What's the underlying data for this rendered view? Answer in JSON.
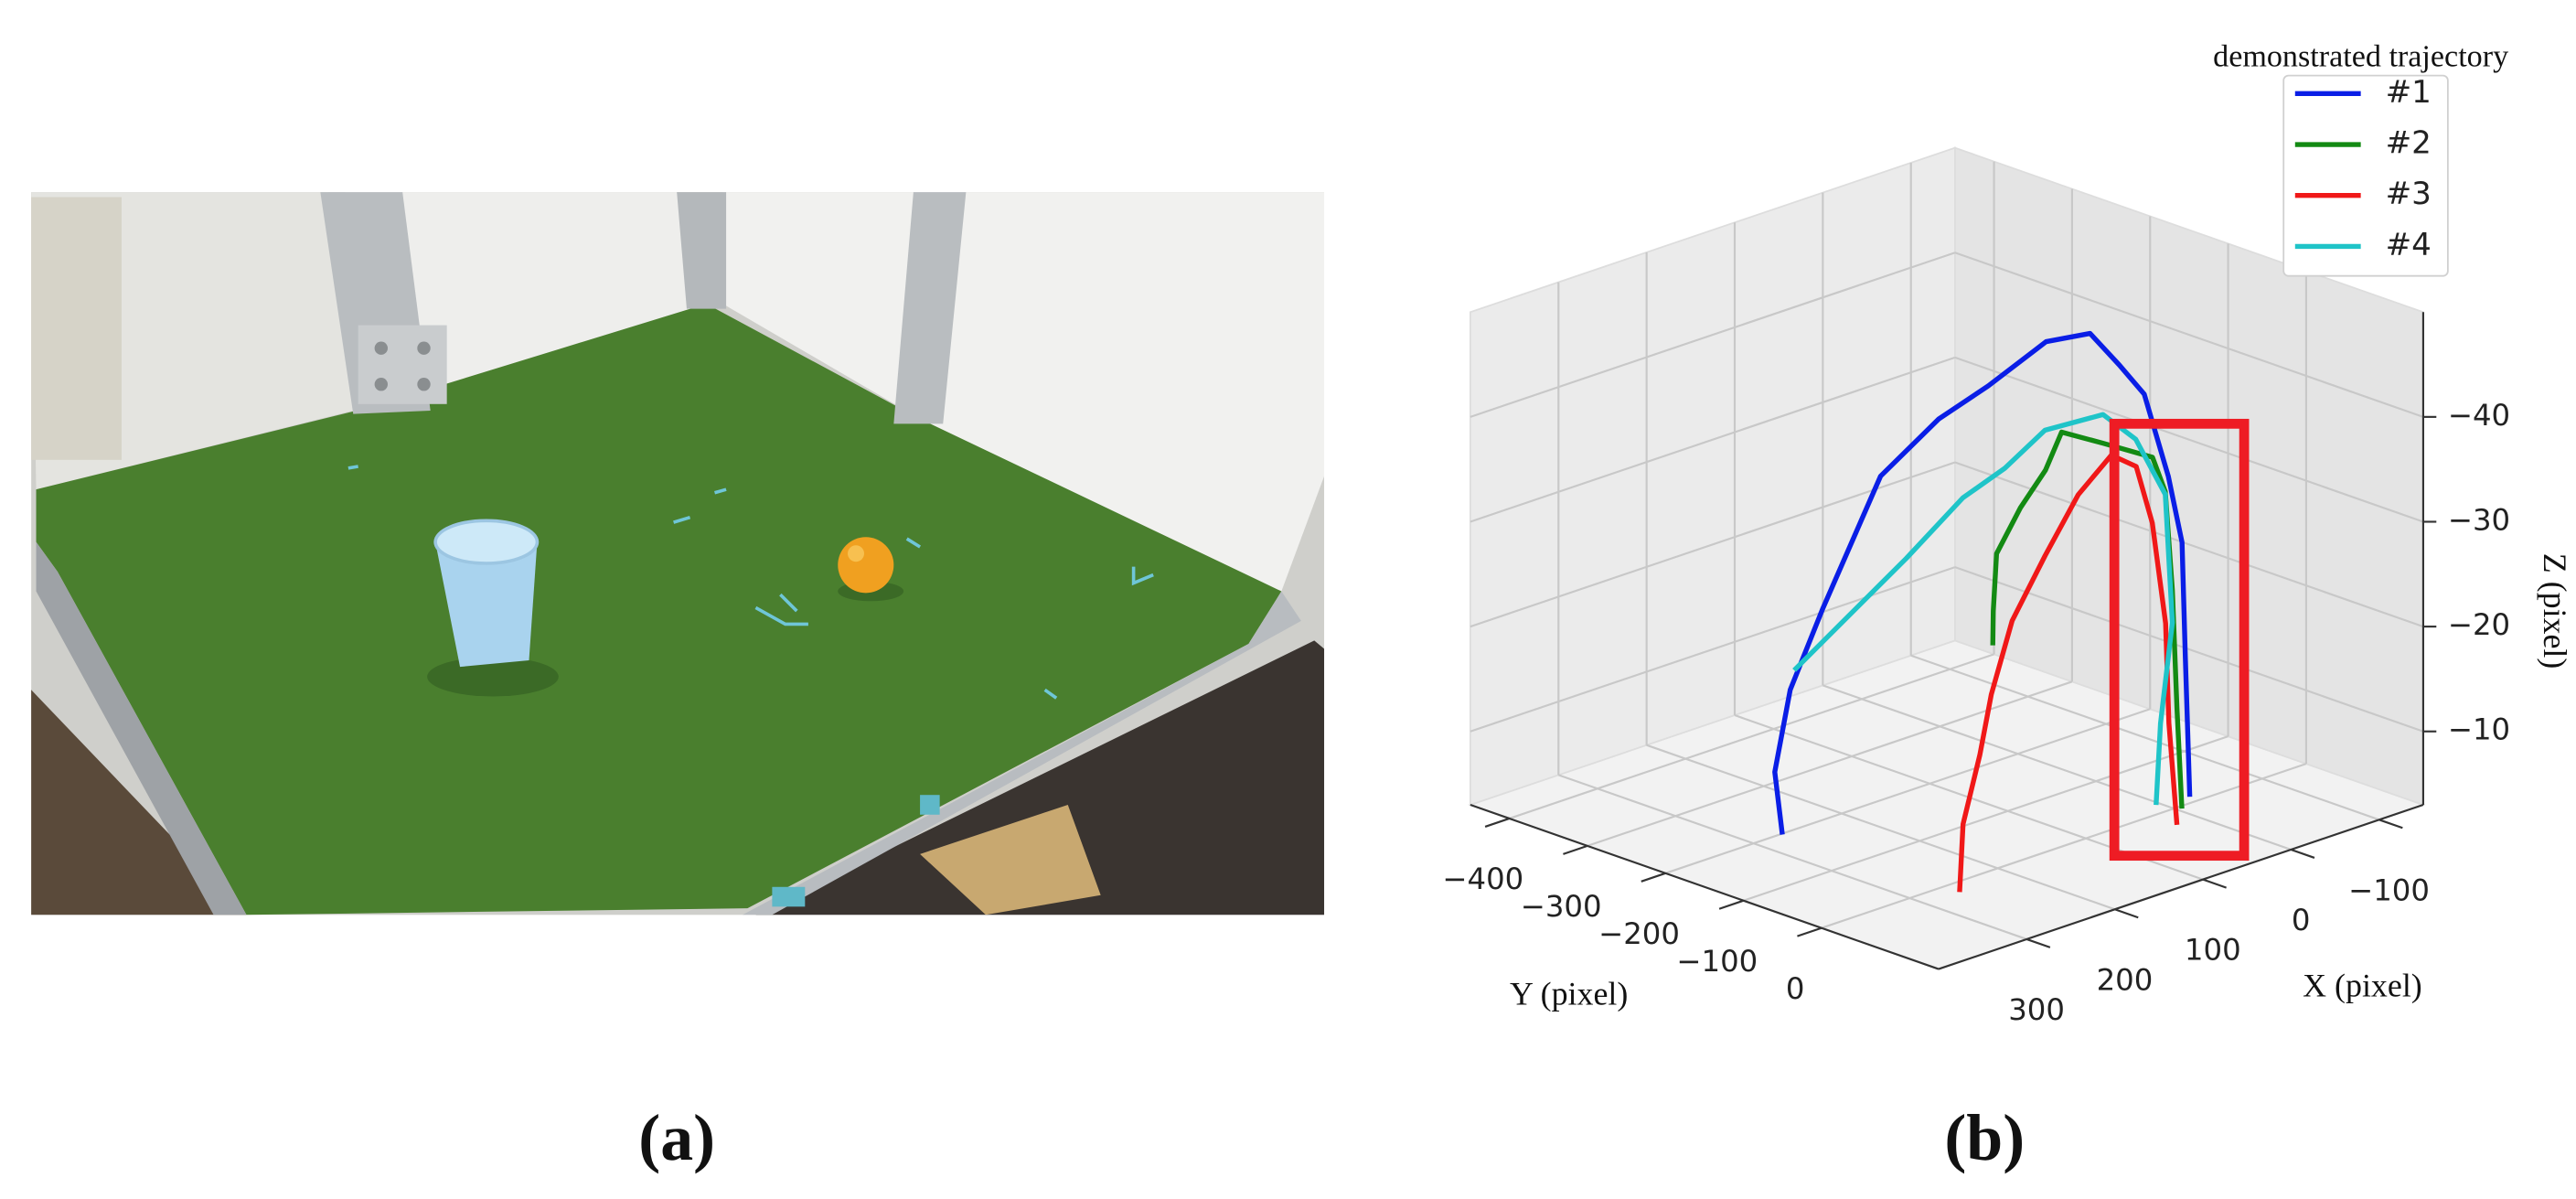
{
  "captions": [
    "(a)",
    "(b)"
  ],
  "chart_data": {
    "type": "line3d",
    "legend_title": "demonstrated trajectory",
    "xlabel": "X (pixel)",
    "ylabel": "Y (pixel)",
    "zlabel": "Z (pixel)",
    "xlim": [
      -150,
      400
    ],
    "ylim": [
      -450,
      150
    ],
    "zlim": [
      -3,
      -50
    ],
    "xticks": [
      {
        "value": -100,
        "label": "−100"
      },
      0,
      100,
      200,
      300
    ],
    "yticks": [
      {
        "value": -400,
        "label": "−400"
      },
      {
        "value": -300,
        "label": "−300"
      },
      {
        "value": -200,
        "label": "−200"
      },
      {
        "value": -100,
        "label": "−100"
      },
      0
    ],
    "zticks": [
      {
        "value": -40,
        "label": "−40"
      },
      {
        "value": -30,
        "label": "−30"
      },
      {
        "value": -20,
        "label": "−20"
      },
      {
        "value": -10,
        "label": "−10"
      }
    ],
    "grid": true,
    "series": [
      {
        "name": "#1",
        "color": "#0a1ee6",
        "x": [
          355,
          360,
          354,
          338,
          278,
          219,
          171,
          99,
          43,
          26,
          8,
          9,
          6,
          3,
          6
        ],
        "y": [
          -101,
          -105,
          -92,
          -68,
          -62,
          -54,
          -45,
          -52,
          -59,
          -41,
          -29,
          3,
          17,
          18,
          27
        ],
        "z": [
          -8,
          -14,
          -22,
          -30,
          -41,
          -45,
          -47,
          -49,
          -48,
          -45,
          -42,
          -35,
          -29,
          -18,
          -5
        ]
      },
      {
        "name": "#2",
        "color": "#138a13",
        "x": [
          250,
          245,
          235,
          215,
          190,
          170,
          130,
          90,
          70,
          55,
          40,
          30
        ],
        "y": [
          50,
          45,
          38,
          46,
          50,
          48,
          56,
          74,
          68,
          60,
          49,
          44
        ],
        "z": [
          -27,
          -30,
          -35,
          -39,
          -42,
          -45,
          -43,
          -41,
          -37,
          -27,
          -15,
          -5
        ]
      },
      {
        "name": "#3",
        "color": "#f01818",
        "x": [
          330,
          320,
          300,
          280,
          250,
          210,
          160,
          110,
          80,
          60,
          45,
          35,
          25
        ],
        "y": [
          98,
          91,
          90,
          82,
          75,
          72,
          58,
          44,
          42,
          40,
          40,
          33,
          32
        ],
        "z": [
          -7,
          -13,
          -19,
          -24,
          -30,
          -35,
          -39,
          -41,
          -39,
          -33,
          -23,
          -13,
          -3
        ]
      },
      {
        "name": "#4",
        "color": "#1fc4c8",
        "x": [
          285,
          269,
          226,
          197,
          176,
          142,
          100,
          70,
          40,
          40,
          40,
          39
        ],
        "y": [
          -165,
          -124,
          -88,
          -48,
          -18,
          -5,
          22,
          30,
          34,
          43,
          28,
          21
        ],
        "z": [
          -20,
          -25,
          -31,
          -37,
          -40,
          -43,
          -44,
          -41,
          -35,
          -23,
          -13,
          -5
        ]
      }
    ]
  }
}
